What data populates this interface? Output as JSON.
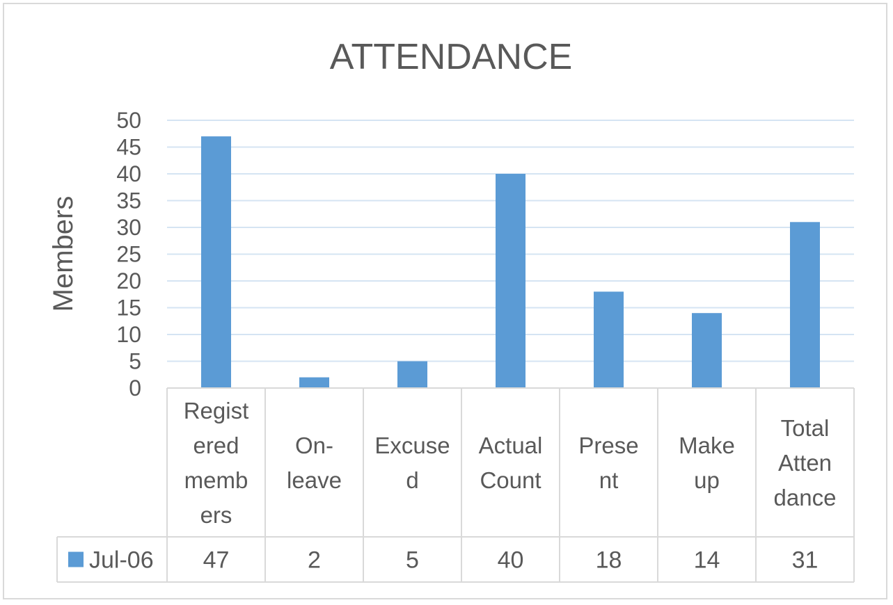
{
  "chart_data": {
    "type": "bar",
    "title": "ATTENDANCE",
    "ylabel": "Members",
    "xlabel": "",
    "ylim": [
      0,
      50
    ],
    "ytick_step": 5,
    "grid": true,
    "data_table": true,
    "categories": [
      [
        "Regist",
        "ered",
        "memb",
        "ers"
      ],
      [
        "On-",
        "leave"
      ],
      [
        "Excuse",
        "d"
      ],
      [
        "Actual",
        "Count"
      ],
      [
        "Prese",
        "nt"
      ],
      [
        "Make",
        "up"
      ],
      [
        "Total",
        "Atten",
        "dance"
      ]
    ],
    "series": [
      {
        "name": "Jul-06",
        "color": "#5b9bd5",
        "values": [
          47,
          2,
          5,
          40,
          18,
          14,
          31
        ]
      }
    ]
  }
}
